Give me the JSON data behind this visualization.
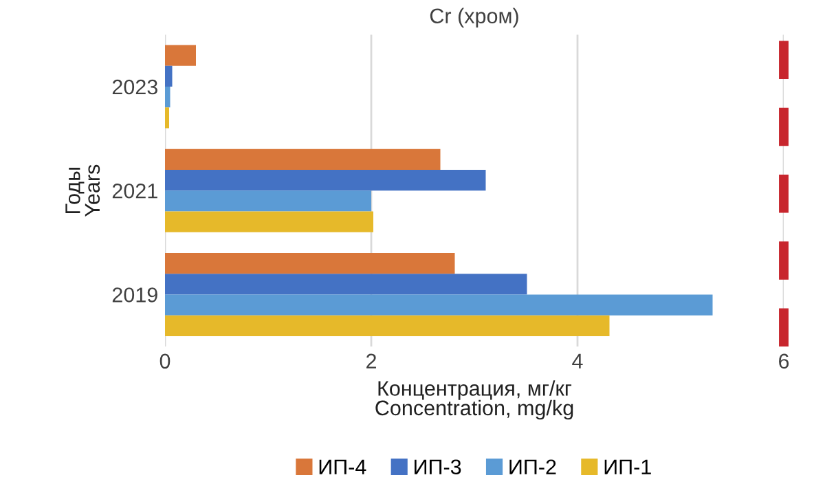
{
  "chart_data": {
    "type": "bar",
    "orientation": "horizontal",
    "title": "Cr (хром)",
    "xlabel": "Концентрация, мг/кг\nConcentration, mg/kg",
    "ylabel": "Годы\nYears",
    "categories": [
      "2023",
      "2021",
      "2019"
    ],
    "series": [
      {
        "name": "ИП-4",
        "color": "#d9773a",
        "values": [
          0.3,
          2.67,
          2.81
        ]
      },
      {
        "name": "ИП-3",
        "color": "#4472c4",
        "values": [
          0.07,
          3.11,
          3.51
        ]
      },
      {
        "name": "ИП-2",
        "color": "#5b9bd5",
        "values": [
          0.05,
          2.0,
          5.31
        ]
      },
      {
        "name": "ИП-1",
        "color": "#e6b92a",
        "values": [
          0.04,
          2.02,
          4.31
        ]
      }
    ],
    "xlim": [
      0,
      6
    ],
    "xticks": [
      0,
      2,
      4,
      6
    ],
    "grid": "x",
    "legend": "bottom",
    "ref_lines": [
      {
        "axis": "x",
        "value": 6,
        "color": "#c8262e",
        "line_style": "dashed"
      }
    ]
  }
}
